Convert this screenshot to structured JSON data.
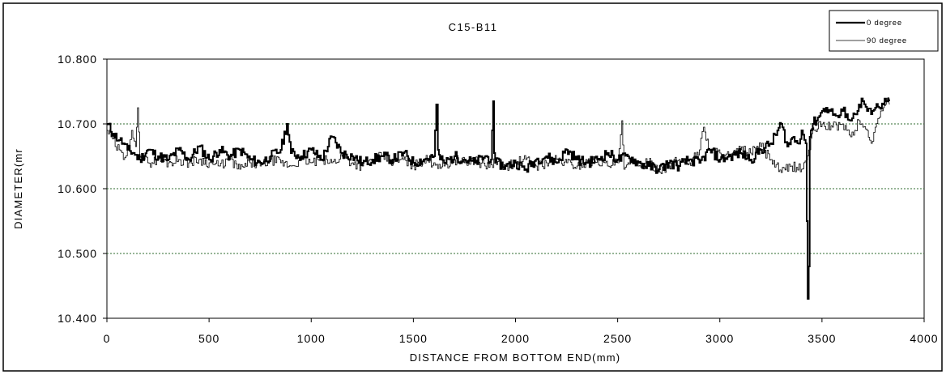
{
  "chart_data": {
    "type": "line",
    "title": "C15-B11",
    "xlabel": "DISTANCE FROM BOTTOM END(mm)",
    "ylabel": "DIAMETER(mr",
    "xlim": [
      0,
      4000
    ],
    "ylim": [
      10.4,
      10.8
    ],
    "x_ticks": [
      "0",
      "500",
      "1000",
      "1500",
      "2000",
      "2500",
      "3000",
      "3500",
      "4000"
    ],
    "y_ticks": [
      "10.400",
      "10.500",
      "10.600",
      "10.700",
      "10.800"
    ],
    "grid": "horizontal dotted at 10.500, 10.600, 10.700",
    "legend_position": "top-right",
    "series": [
      {
        "name": "0 degree",
        "color": "#000000",
        "x": [
          0,
          30,
          60,
          80,
          100,
          130,
          160,
          200,
          250,
          300,
          350,
          400,
          450,
          500,
          550,
          600,
          650,
          700,
          750,
          800,
          850,
          880,
          900,
          950,
          1000,
          1050,
          1100,
          1150,
          1200,
          1250,
          1300,
          1350,
          1400,
          1450,
          1500,
          1550,
          1600,
          1612,
          1620,
          1630,
          1650,
          1700,
          1750,
          1800,
          1850,
          1880,
          1890,
          1895,
          1900,
          1950,
          2000,
          2050,
          2100,
          2150,
          2200,
          2250,
          2300,
          2350,
          2400,
          2450,
          2500,
          2550,
          2600,
          2650,
          2700,
          2750,
          2800,
          2850,
          2900,
          2950,
          3000,
          3050,
          3100,
          3150,
          3200,
          3250,
          3300,
          3330,
          3360,
          3380,
          3400,
          3420,
          3430,
          3435,
          3440,
          3445,
          3455,
          3480,
          3500,
          3520,
          3540,
          3560,
          3580,
          3600,
          3620,
          3640,
          3660,
          3680,
          3700,
          3720,
          3740,
          3760,
          3780,
          3800,
          3820,
          3830
        ],
        "y": [
          10.7,
          10.685,
          10.675,
          10.67,
          10.66,
          10.655,
          10.645,
          10.66,
          10.65,
          10.645,
          10.66,
          10.645,
          10.665,
          10.645,
          10.66,
          10.65,
          10.66,
          10.645,
          10.64,
          10.65,
          10.66,
          10.7,
          10.655,
          10.65,
          10.66,
          10.645,
          10.68,
          10.655,
          10.65,
          10.64,
          10.645,
          10.65,
          10.645,
          10.655,
          10.64,
          10.645,
          10.65,
          10.73,
          10.66,
          10.645,
          10.64,
          10.65,
          10.645,
          10.64,
          10.65,
          10.645,
          10.735,
          10.655,
          10.64,
          10.635,
          10.64,
          10.63,
          10.645,
          10.65,
          10.64,
          10.66,
          10.645,
          10.64,
          10.645,
          10.655,
          10.645,
          10.65,
          10.64,
          10.635,
          10.63,
          10.64,
          10.635,
          10.645,
          10.64,
          10.66,
          10.645,
          10.65,
          10.655,
          10.645,
          10.66,
          10.67,
          10.7,
          10.665,
          10.68,
          10.67,
          10.69,
          10.67,
          10.43,
          10.48,
          10.68,
          10.69,
          10.7,
          10.71,
          10.72,
          10.725,
          10.72,
          10.715,
          10.71,
          10.72,
          10.715,
          10.705,
          10.715,
          10.73,
          10.735,
          10.72,
          10.715,
          10.725,
          10.725,
          10.73,
          10.735,
          10.735
        ]
      },
      {
        "name": "90 degree",
        "color": "#000000",
        "x": [
          0,
          20,
          40,
          60,
          80,
          100,
          120,
          140,
          150,
          160,
          180,
          200,
          250,
          300,
          350,
          400,
          450,
          500,
          550,
          600,
          650,
          700,
          750,
          800,
          850,
          900,
          950,
          1000,
          1050,
          1100,
          1150,
          1200,
          1250,
          1300,
          1350,
          1400,
          1450,
          1500,
          1550,
          1600,
          1650,
          1700,
          1750,
          1800,
          1850,
          1900,
          1950,
          2000,
          2050,
          2100,
          2150,
          2200,
          2250,
          2300,
          2350,
          2400,
          2450,
          2500,
          2520,
          2530,
          2550,
          2600,
          2650,
          2700,
          2750,
          2800,
          2850,
          2900,
          2920,
          2950,
          3000,
          3050,
          3100,
          3150,
          3200,
          3250,
          3300,
          3350,
          3400,
          3440,
          3450,
          3460,
          3500,
          3550,
          3600,
          3620,
          3640,
          3660,
          3680,
          3700,
          3720,
          3740,
          3760,
          3780,
          3800,
          3810,
          3820,
          3830
        ],
        "y": [
          10.69,
          10.68,
          10.665,
          10.66,
          10.645,
          10.665,
          10.69,
          10.665,
          10.725,
          10.65,
          10.645,
          10.64,
          10.645,
          10.64,
          10.645,
          10.64,
          10.645,
          10.64,
          10.635,
          10.645,
          10.63,
          10.64,
          10.635,
          10.645,
          10.64,
          10.635,
          10.645,
          10.64,
          10.645,
          10.64,
          10.65,
          10.64,
          10.635,
          10.645,
          10.65,
          10.64,
          10.645,
          10.635,
          10.645,
          10.64,
          10.635,
          10.645,
          10.64,
          10.645,
          10.635,
          10.64,
          10.635,
          10.64,
          10.645,
          10.635,
          10.64,
          10.645,
          10.64,
          10.635,
          10.64,
          10.645,
          10.635,
          10.64,
          10.705,
          10.63,
          10.64,
          10.635,
          10.64,
          10.63,
          10.635,
          10.645,
          10.64,
          10.66,
          10.695,
          10.66,
          10.655,
          10.65,
          10.66,
          10.655,
          10.665,
          10.645,
          10.625,
          10.635,
          10.63,
          10.66,
          10.685,
          10.69,
          10.7,
          10.695,
          10.7,
          10.69,
          10.68,
          10.69,
          10.705,
          10.695,
          10.69,
          10.67,
          10.695,
          10.71,
          10.725,
          10.73,
          10.74,
          10.73
        ]
      }
    ]
  }
}
